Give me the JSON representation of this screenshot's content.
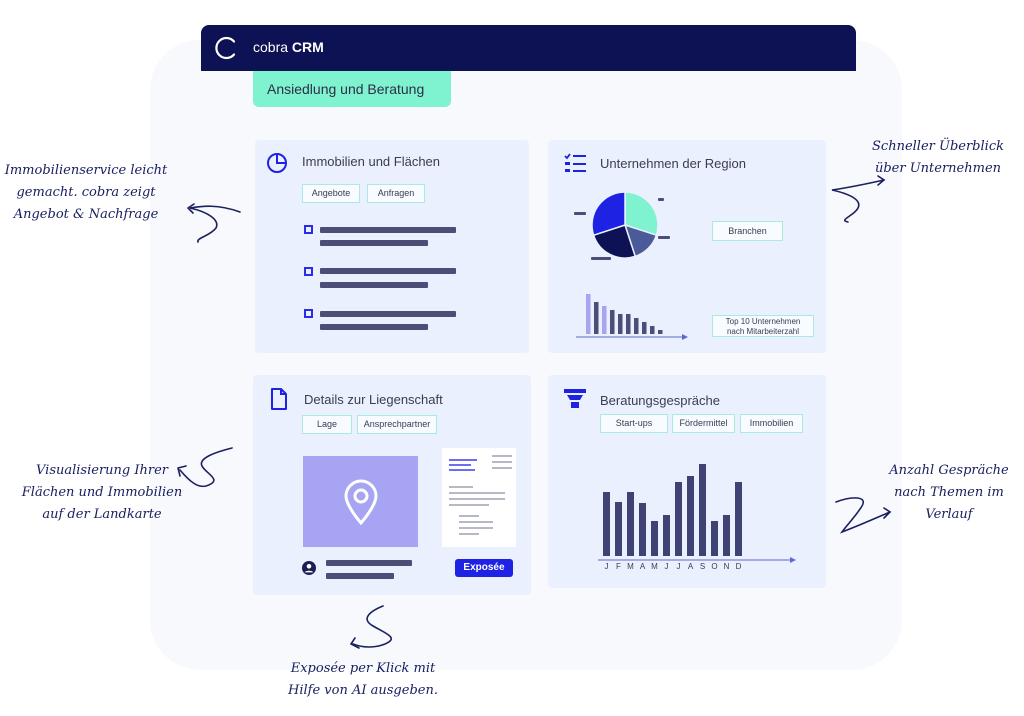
{
  "app": {
    "brand_prefix": "cobra",
    "brand_name": "CRM",
    "module_tab": "Ansiedlung und Beratung"
  },
  "cards": {
    "immobilien": {
      "title": "Immobilien und Flächen",
      "chips": [
        "Angebote",
        "Anfragen"
      ]
    },
    "unternehmen": {
      "title": "Unternehmen der Region",
      "chips": [
        "Branchen",
        "Top 10 Unternehmen\nnach Mitarbeiterzahl"
      ]
    },
    "liegenschaft": {
      "title": "Details zur Liegenschaft",
      "chips": [
        "Lage",
        "Ansprechpartner"
      ],
      "button": "Exposée"
    },
    "beratung": {
      "title": "Beratungsgespräche",
      "chips": [
        "Start-ups",
        "Fördermittel",
        "Immobilien"
      ]
    }
  },
  "annotations": {
    "immobilien": "Immobilienservice leicht\ngemacht. cobra zeigt\nAngebot & Nachfrage",
    "unternehmen": "Schneller Überblick\nüber Unternehmen",
    "karte": "Visualisierung Ihrer\nFlächen und Immobilien\nauf der Landkarte",
    "gespraeche": "Anzahl Gespräche\nnach Themen im\nVerlauf",
    "expose": "Exposée per Klick mit\nHilfe von AI ausgeben."
  },
  "colors": {
    "navy": "#0d1254",
    "mint": "#7ff2cf",
    "accent_blue": "#1d22e3",
    "card_bg": "#eaf0fd",
    "bar": "#4b4f78"
  },
  "chart_data": [
    {
      "type": "pie",
      "categories": [
        "",
        "",
        "",
        ""
      ],
      "values": [
        30,
        15,
        25,
        30
      ],
      "colors": [
        "#7ff2cf",
        "#4b5a99",
        "#0d1254",
        "#1d22e3"
      ]
    },
    {
      "type": "bar",
      "categories": [
        "",
        "",
        "",
        "",
        "",
        "",
        "",
        "",
        "",
        ""
      ],
      "values": [
        10,
        8,
        7,
        6,
        5,
        5,
        4,
        3,
        2,
        1
      ],
      "colors": [
        "#a7a4f0",
        "#4b4f78",
        "#a7a4f0",
        "#4b4f78",
        "#4b4f78",
        "#4b4f78",
        "#4b4f78",
        "#4b4f78",
        "#4b4f78",
        "#4b4f78"
      ]
    },
    {
      "type": "bar",
      "categories": [
        "J",
        "F",
        "M",
        "A",
        "M",
        "J",
        "J",
        "A",
        "S",
        "O",
        "N",
        "D"
      ],
      "values": [
        64,
        54,
        64,
        53,
        35,
        41,
        74,
        80,
        92,
        35,
        41,
        74
      ],
      "color": "#3f4373"
    }
  ]
}
